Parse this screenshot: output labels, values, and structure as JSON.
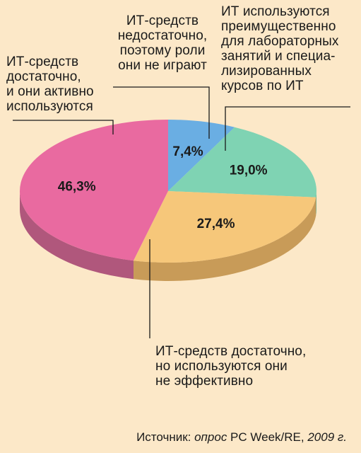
{
  "chart_data": {
    "type": "pie",
    "categories": [
      "ИТ-средств достаточно, и они активно используются",
      "ИТ-средств недостаточно, поэтому роли они не играют",
      "ИТ используются преимущественно для лабораторных занятий и специализированных курсов по ИТ",
      "ИТ-средств достаточно, но используются они не эффективно"
    ],
    "values": [
      46.3,
      7.4,
      19.0,
      27.4
    ],
    "value_labels": [
      "46,3%",
      "7,4%",
      "19,0%",
      "27,4%"
    ],
    "colors": [
      "#e96aa0",
      "#6aaee3",
      "#7fd3b3",
      "#f6c77a"
    ],
    "side_colors": [
      "#b0577c",
      "#4f87b4",
      "#5ea88b",
      "#c89b58"
    ],
    "legend": "none",
    "style": "3d"
  },
  "labels": [
    "ИТ-средств\nдостаточно,\nи они активно\nиспользуются",
    "ИТ-средств\nнедостаточно,\nпоэтому роли\nони не играют",
    "ИТ используются\nпреимущественно\nдля лабораторных\nзанятий и специа-\nлизированных\nкурсов по ИТ",
    "ИТ-средств достаточно,\nно используются они\nне эффективно"
  ],
  "source": {
    "prefix": "Источник:",
    "middle": "опрос",
    "name": "PC Week/RE,",
    "year": "2009 г."
  },
  "colors": {
    "background": "#fce8c8",
    "leader": "#1a1a1a"
  }
}
